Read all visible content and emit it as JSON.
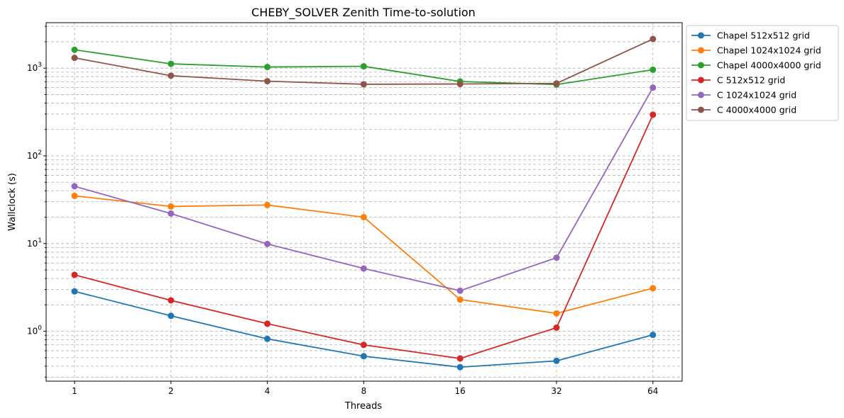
{
  "chart_data": {
    "type": "line",
    "title": "CHEBY_SOLVER Zenith Time-to-solution",
    "xlabel": "Threads",
    "ylabel": "Wallclock (s)",
    "x": [
      1,
      2,
      4,
      8,
      16,
      32,
      64
    ],
    "x_tick_labels": [
      "1",
      "2",
      "4",
      "8",
      "16",
      "32",
      "64"
    ],
    "x_scale": "log2",
    "y_scale": "log",
    "ylim": [
      0.27,
      3300
    ],
    "y_tick_labels": [
      {
        "value": 1,
        "base": "10",
        "exp": "0"
      },
      {
        "value": 10,
        "base": "10",
        "exp": "1"
      },
      {
        "value": 100,
        "base": "10",
        "exp": "2"
      },
      {
        "value": 1000,
        "base": "10",
        "exp": "3"
      }
    ],
    "grid": true,
    "legend_position": "outside-top-right",
    "series": [
      {
        "name": "Chapel 512x512 grid",
        "color": "#1f77b4",
        "values": [
          2.85,
          1.5,
          0.82,
          0.52,
          0.39,
          0.46,
          0.91
        ]
      },
      {
        "name": "Chapel 1024x1024 grid",
        "color": "#ff7f0e",
        "values": [
          35,
          26.5,
          27.5,
          20,
          2.3,
          1.6,
          3.1
        ]
      },
      {
        "name": "Chapel 4000x4000 grid",
        "color": "#2ca02c",
        "values": [
          1620,
          1120,
          1030,
          1050,
          705,
          650,
          960
        ]
      },
      {
        "name": "C 512x512 grid",
        "color": "#d62728",
        "values": [
          4.4,
          2.25,
          1.22,
          0.7,
          0.49,
          1.1,
          295
        ]
      },
      {
        "name": "C 1024x1024 grid",
        "color": "#9467bd",
        "values": [
          45,
          22,
          9.9,
          5.2,
          2.9,
          6.9,
          600
        ]
      },
      {
        "name": "C 4000x4000 grid",
        "color": "#8c564b",
        "values": [
          1310,
          820,
          710,
          655,
          660,
          670,
          2150
        ]
      }
    ]
  }
}
